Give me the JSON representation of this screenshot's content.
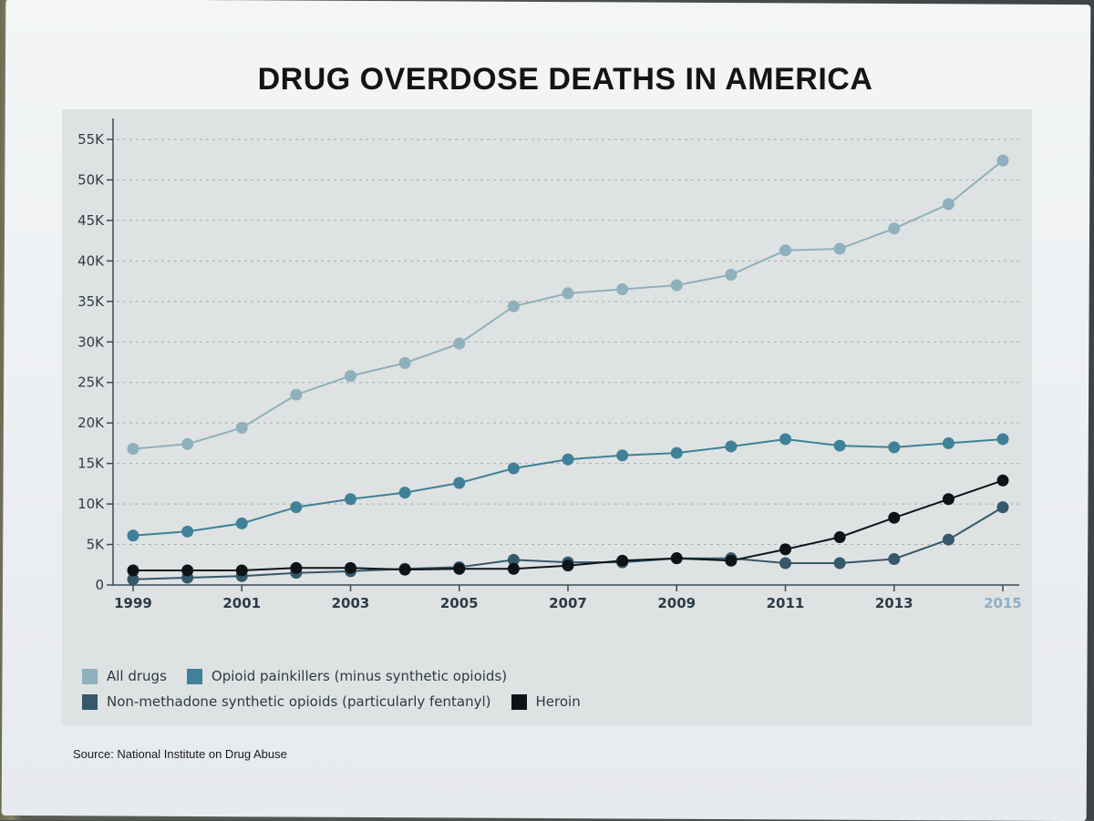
{
  "header": {
    "title": "DRUG OVERDOSE DEATHS IN AMERICA"
  },
  "footer": {
    "source": "Source: National Institute on Drug Abuse"
  },
  "chart_data": {
    "type": "line",
    "title": "DRUG OVERDOSE DEATHS IN AMERICA",
    "xlabel": "",
    "ylabel": "",
    "x": [
      1999,
      2000,
      2001,
      2002,
      2003,
      2004,
      2005,
      2006,
      2007,
      2008,
      2009,
      2010,
      2011,
      2012,
      2013,
      2014,
      2015
    ],
    "x_tick_labels": [
      "1999",
      "2001",
      "2003",
      "2005",
      "2007",
      "2009",
      "2011",
      "2013",
      "2015"
    ],
    "y_tick_labels": [
      "0",
      "5K",
      "10K",
      "15K",
      "20K",
      "25K",
      "30K",
      "35K",
      "40K",
      "45K",
      "50K",
      "55K"
    ],
    "ylim": [
      0,
      55000
    ],
    "grid": "horizontal dashed",
    "legend_position": "bottom-left",
    "series": [
      {
        "name": "All drugs",
        "color": "#8fb0bd",
        "values": [
          16800,
          17400,
          19400,
          23500,
          25800,
          27400,
          29800,
          34400,
          36000,
          36500,
          37000,
          38300,
          41300,
          41500,
          44000,
          47000,
          52400
        ]
      },
      {
        "name": "Opioid painkillers (minus synthetic opioids)",
        "color": "#3f8199",
        "values": [
          6100,
          6600,
          7600,
          9600,
          10600,
          11400,
          12600,
          14400,
          15500,
          16000,
          16300,
          17100,
          18000,
          17200,
          17000,
          17500,
          18000
        ]
      },
      {
        "name": "Non-methadone synthetic opioids (particularly fentanyl)",
        "color": "#35586a",
        "values": [
          700,
          900,
          1100,
          1500,
          1700,
          2000,
          2200,
          3100,
          2800,
          2800,
          3300,
          3300,
          2700,
          2700,
          3200,
          5600,
          9600
        ]
      },
      {
        "name": "Heroin",
        "color": "#0d1418",
        "values": [
          1800,
          1800,
          1800,
          2100,
          2100,
          1900,
          2000,
          2000,
          2400,
          3000,
          3300,
          3000,
          4400,
          5900,
          8300,
          10600,
          12900
        ]
      }
    ]
  }
}
